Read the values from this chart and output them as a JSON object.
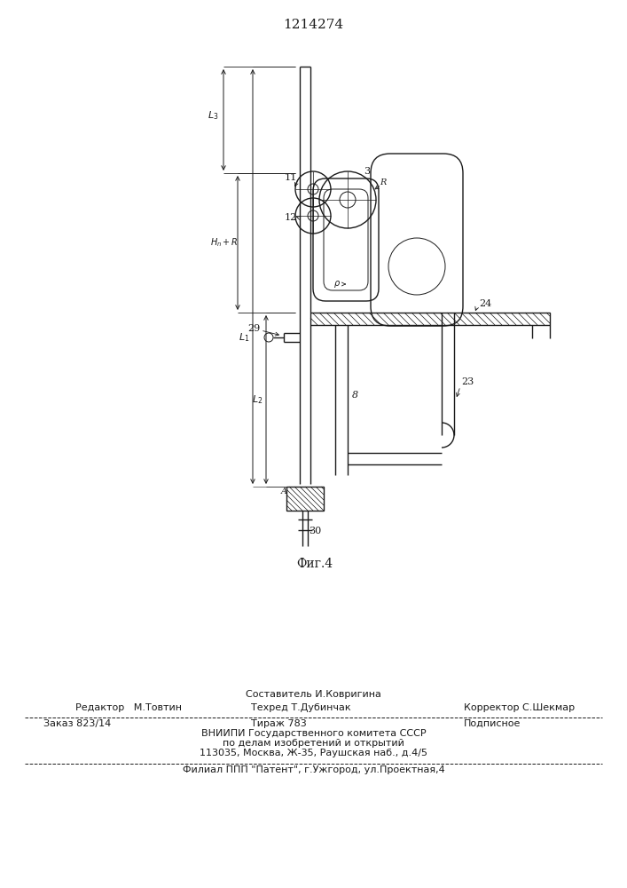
{
  "title": "1214274",
  "fig_label": "Фиг.4",
  "bg_color": "#ffffff",
  "line_color": "#1a1a1a",
  "fig_width": 7.07,
  "fig_height": 10.0,
  "dpi": 100,
  "admin": {
    "line1_left": "Редактор   М.Товтин",
    "line1_center": "Составитель И.Ковригина\nТехред Т.Дубинчак",
    "line1_right": "Корректор С.Шекмар",
    "line2_left": "Заказ 823/14",
    "line2_center": "Тираж 783",
    "line2_right": "Подписное",
    "line3": "ВНИИПИ Государственного комитета СССР",
    "line4": "по делам изобретений и открытий",
    "line5": "113035, Москва, Ж-35, Раушская наб., д.4/5",
    "line6": "Филиал ППП \"Патент\", г.Ужгород, ул.Проектная,4"
  }
}
